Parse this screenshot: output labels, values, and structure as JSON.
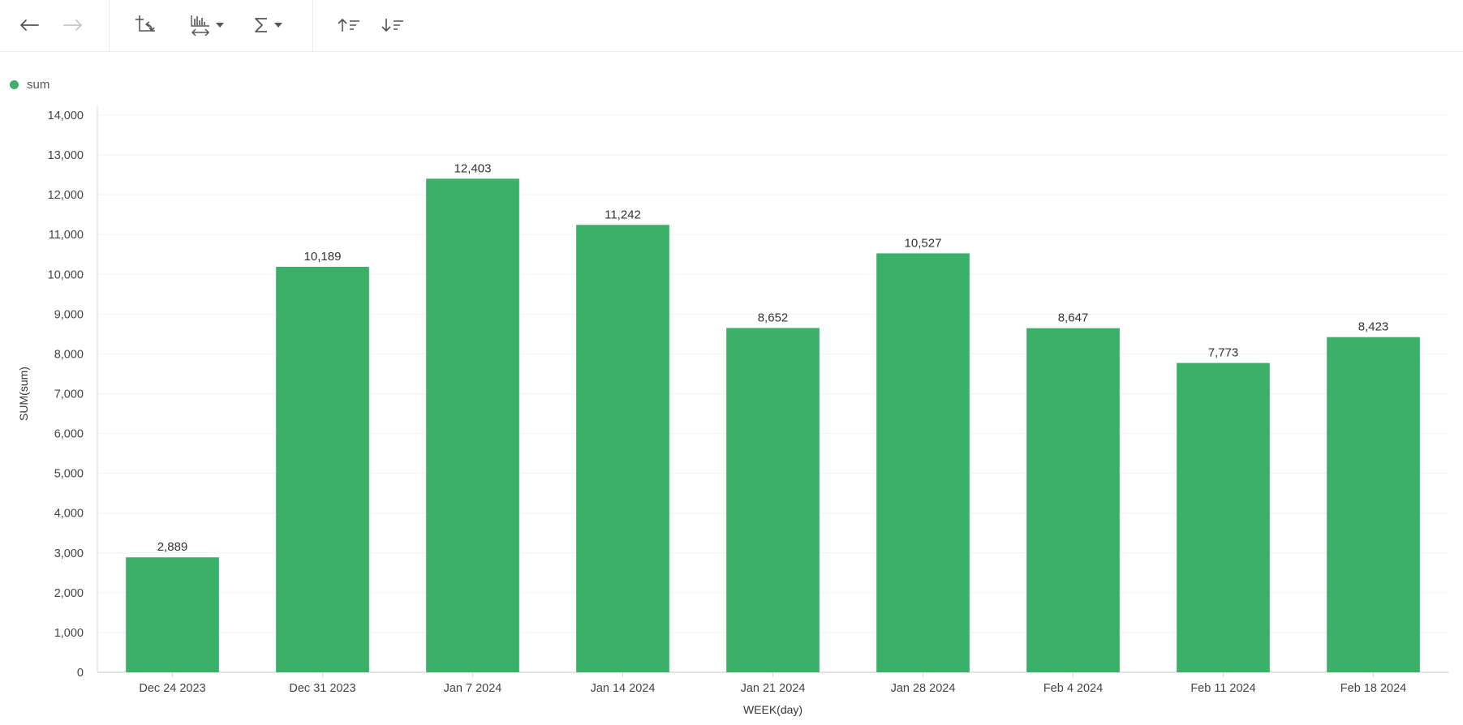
{
  "toolbar": {
    "icons": [
      "arrow-left-icon",
      "arrow-right-icon",
      "swap-axes-icon",
      "chart-width-icon",
      "sigma-icon",
      "sort-ascending-icon",
      "sort-descending-icon"
    ]
  },
  "colors": {
    "bar": "#3bb068",
    "grid": "#f2f2f2",
    "axis": "#d9d9d9",
    "icon": "#555555",
    "icon_disabled": "#c8c8c8"
  },
  "legend": {
    "label": "sum"
  },
  "chart_data": {
    "type": "bar",
    "categories": [
      "Dec 24 2023",
      "Dec 31 2023",
      "Jan 7 2024",
      "Jan 14 2024",
      "Jan 21 2024",
      "Jan 28 2024",
      "Feb 4 2024",
      "Feb 11 2024",
      "Feb 18 2024"
    ],
    "series": [
      {
        "name": "sum",
        "values": [
          2889,
          10189,
          12403,
          11242,
          8652,
          10527,
          8647,
          7773,
          8423
        ]
      }
    ],
    "data_labels": [
      "2,889",
      "10,189",
      "12,403",
      "11,242",
      "8,652",
      "10,527",
      "8,647",
      "7,773",
      "8,423"
    ],
    "yticks": [
      "0",
      "1,000",
      "2,000",
      "3,000",
      "4,000",
      "5,000",
      "6,000",
      "7,000",
      "8,000",
      "9,000",
      "10,000",
      "11,000",
      "12,000",
      "13,000",
      "14,000"
    ],
    "ylim": [
      0,
      14000
    ],
    "xlabel": "WEEK(day)",
    "ylabel": "SUM(sum)",
    "grid": true,
    "legend_position": "top-left"
  }
}
